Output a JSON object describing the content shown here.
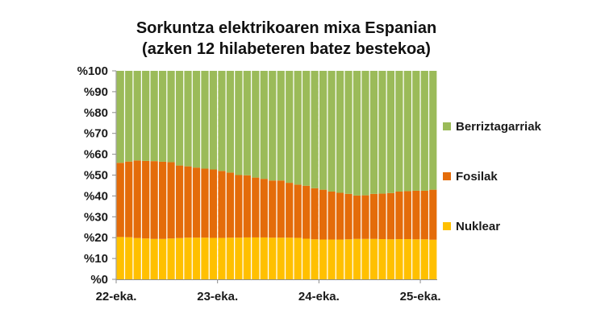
{
  "chart_data": {
    "type": "bar",
    "stacked": true,
    "title_line1": "Sorkuntza elektrikoaren mixa Espanian",
    "title_line2": "(azken 12 hilabeteren batez bestekoa)",
    "ylim": [
      0,
      100
    ],
    "y_ticks": [
      "%0",
      "%10",
      "%20",
      "%30",
      "%40",
      "%50",
      "%60",
      "%70",
      "%80",
      "%90",
      "%100"
    ],
    "x_tick_labels": [
      "22-eka.",
      "23-eka.",
      "24-eka.",
      "25-eka."
    ],
    "x_tick_indices": [
      0,
      12,
      24,
      36
    ],
    "legend_position": "right",
    "colors": {
      "nuclear": "#ffc000",
      "fossil": "#e46c0a",
      "renewable": "#9bbb59",
      "axis": "#8c8c8c",
      "dashed_grid": "#ffffff"
    },
    "categories": [
      "22-eka.",
      "",
      "",
      "",
      "",
      "",
      "",
      "",
      "",
      "",
      "",
      "",
      "23-eka.",
      "",
      "",
      "",
      "",
      "",
      "",
      "",
      "",
      "",
      "",
      "",
      "24-eka.",
      "",
      "",
      "",
      "",
      "",
      "",
      "",
      "",
      "",
      "",
      "",
      "25-eka.",
      ""
    ],
    "series": [
      {
        "name": "Nuklear",
        "color": "#ffc000",
        "values": [
          20.3,
          20.2,
          19.8,
          19.6,
          19.4,
          19.4,
          19.6,
          19.8,
          20.0,
          20.0,
          20.0,
          19.9,
          19.9,
          20.0,
          20.0,
          20.1,
          20.1,
          20.1,
          20.0,
          20.0,
          20.0,
          19.9,
          19.5,
          19.2,
          19.1,
          19.1,
          19.1,
          19.2,
          19.4,
          19.4,
          19.4,
          19.3,
          19.2,
          19.3,
          19.3,
          19.2,
          19.2,
          19.0
        ]
      },
      {
        "name": "Fosilak",
        "color": "#e46c0a",
        "values": [
          35.6,
          36.3,
          37.2,
          37.2,
          37.3,
          37.0,
          36.6,
          34.8,
          34.2,
          33.6,
          33.1,
          32.8,
          32.1,
          31.2,
          30.0,
          29.8,
          28.7,
          28.1,
          27.4,
          27.4,
          26.3,
          25.5,
          25.4,
          24.5,
          23.9,
          23.0,
          22.4,
          21.8,
          20.8,
          20.9,
          21.6,
          21.8,
          22.2,
          22.8,
          23.0,
          23.3,
          23.3,
          24.0
        ]
      },
      {
        "name": "Berriztagarriak",
        "color": "#9bbb59",
        "values": [
          44.1,
          43.5,
          43.0,
          43.2,
          43.3,
          43.6,
          43.8,
          45.4,
          45.8,
          46.4,
          46.9,
          47.3,
          48.0,
          48.8,
          50.0,
          50.1,
          51.2,
          51.8,
          52.6,
          52.6,
          53.7,
          54.6,
          55.1,
          56.3,
          57.0,
          57.9,
          58.5,
          59.0,
          59.8,
          59.7,
          59.0,
          58.9,
          58.6,
          57.9,
          57.7,
          57.5,
          57.5,
          57.0
        ]
      }
    ]
  }
}
